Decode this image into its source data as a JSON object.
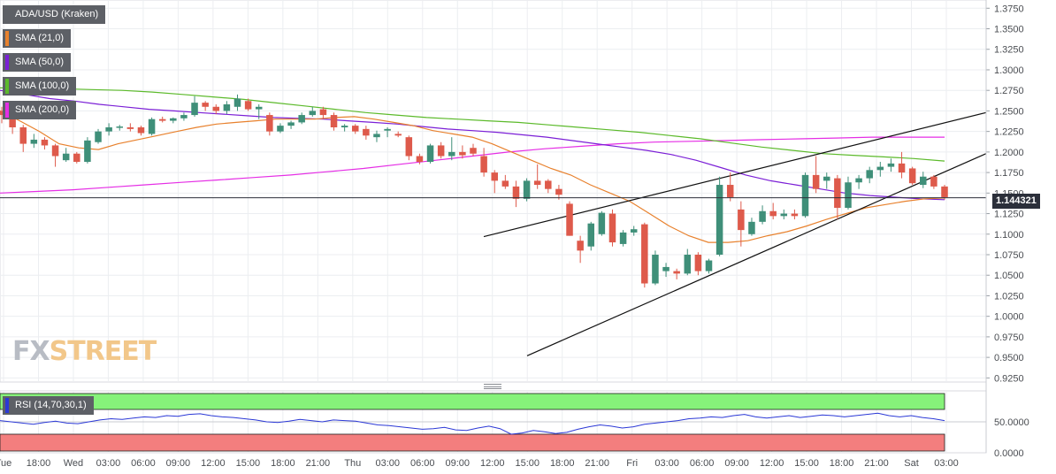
{
  "legends": [
    {
      "label": "ADA/USD (Kraken)",
      "color": "#5d6066"
    },
    {
      "label": "SMA (21,0)",
      "color": "#e8812d"
    },
    {
      "label": "SMA (50,0)",
      "color": "#7b1fd6"
    },
    {
      "label": "SMA (100,0)",
      "color": "#5cba2b"
    },
    {
      "label": "SMA (200,0)",
      "color": "#e52ee5"
    }
  ],
  "rsi_label": "RSI (14,70,30,1)",
  "current_price": "1.144321",
  "watermark": {
    "fx": "FX",
    "street": "STREET"
  },
  "colors": {
    "up": "#3f8f79",
    "down": "#de5a4b",
    "sma21": "#e8812d",
    "sma50": "#7b1fd6",
    "sma100": "#5cba2b",
    "sma200": "#e52ee5",
    "rsi": "#2b38d6",
    "rsi_over": "#86f27a",
    "rsi_under": "#f37e7e"
  },
  "chart_data": [
    {
      "type": "candlestick",
      "title": "ADA/USD (Kraken)",
      "ylim": [
        0.92,
        1.385
      ],
      "y_ticks": [
        "1.3750",
        "1.3500",
        "1.3250",
        "1.3000",
        "1.2750",
        "1.2500",
        "1.2250",
        "1.2000",
        "1.1750",
        "1.1500",
        "1.1250",
        "1.1000",
        "1.0750",
        "1.0500",
        "1.0250",
        "1.0000",
        "0.9750",
        "0.9500",
        "0.9250"
      ],
      "x_ticks": [
        "Tue",
        "18:00",
        "Wed",
        "03:00",
        "06:00",
        "09:00",
        "12:00",
        "15:00",
        "18:00",
        "21:00",
        "Thu",
        "03:00",
        "06:00",
        "09:00",
        "12:00",
        "15:00",
        "18:00",
        "21:00",
        "Fri",
        "03:00",
        "06:00",
        "09:00",
        "12:00",
        "15:00",
        "18:00",
        "21:00",
        "Sat",
        "03:00"
      ],
      "candles": [
        {
          "o": 1.25,
          "h": 1.255,
          "l": 1.235,
          "c": 1.245
        },
        {
          "o": 1.245,
          "h": 1.252,
          "l": 1.222,
          "c": 1.23
        },
        {
          "o": 1.23,
          "h": 1.233,
          "l": 1.2,
          "c": 1.21
        },
        {
          "o": 1.21,
          "h": 1.222,
          "l": 1.205,
          "c": 1.215
        },
        {
          "o": 1.215,
          "h": 1.218,
          "l": 1.203,
          "c": 1.208
        },
        {
          "o": 1.208,
          "h": 1.21,
          "l": 1.182,
          "c": 1.195
        },
        {
          "o": 1.19,
          "h": 1.205,
          "l": 1.188,
          "c": 1.198
        },
        {
          "o": 1.198,
          "h": 1.2,
          "l": 1.186,
          "c": 1.188
        },
        {
          "o": 1.188,
          "h": 1.218,
          "l": 1.186,
          "c": 1.214
        },
        {
          "o": 1.212,
          "h": 1.228,
          "l": 1.21,
          "c": 1.225
        },
        {
          "o": 1.225,
          "h": 1.235,
          "l": 1.22,
          "c": 1.23
        },
        {
          "o": 1.23,
          "h": 1.233,
          "l": 1.226,
          "c": 1.231
        },
        {
          "o": 1.23,
          "h": 1.235,
          "l": 1.225,
          "c": 1.228
        },
        {
          "o": 1.23,
          "h": 1.232,
          "l": 1.22,
          "c": 1.223
        },
        {
          "o": 1.222,
          "h": 1.242,
          "l": 1.22,
          "c": 1.24
        },
        {
          "o": 1.24,
          "h": 1.243,
          "l": 1.236,
          "c": 1.238
        },
        {
          "o": 1.238,
          "h": 1.242,
          "l": 1.235,
          "c": 1.241
        },
        {
          "o": 1.241,
          "h": 1.248,
          "l": 1.238,
          "c": 1.245
        },
        {
          "o": 1.245,
          "h": 1.268,
          "l": 1.243,
          "c": 1.26
        },
        {
          "o": 1.26,
          "h": 1.262,
          "l": 1.25,
          "c": 1.255
        },
        {
          "o": 1.255,
          "h": 1.258,
          "l": 1.246,
          "c": 1.25
        },
        {
          "o": 1.25,
          "h": 1.262,
          "l": 1.246,
          "c": 1.258
        },
        {
          "o": 1.255,
          "h": 1.27,
          "l": 1.25,
          "c": 1.265
        },
        {
          "o": 1.262,
          "h": 1.265,
          "l": 1.25,
          "c": 1.252
        },
        {
          "o": 1.252,
          "h": 1.258,
          "l": 1.24,
          "c": 1.255
        },
        {
          "o": 1.245,
          "h": 1.248,
          "l": 1.22,
          "c": 1.225
        },
        {
          "o": 1.225,
          "h": 1.235,
          "l": 1.223,
          "c": 1.232
        },
        {
          "o": 1.232,
          "h": 1.238,
          "l": 1.228,
          "c": 1.236
        },
        {
          "o": 1.236,
          "h": 1.248,
          "l": 1.234,
          "c": 1.245
        },
        {
          "o": 1.245,
          "h": 1.255,
          "l": 1.243,
          "c": 1.25
        },
        {
          "o": 1.252,
          "h": 1.255,
          "l": 1.24,
          "c": 1.245
        },
        {
          "o": 1.245,
          "h": 1.248,
          "l": 1.226,
          "c": 1.23
        },
        {
          "o": 1.23,
          "h": 1.234,
          "l": 1.225,
          "c": 1.232
        },
        {
          "o": 1.232,
          "h": 1.234,
          "l": 1.222,
          "c": 1.225
        },
        {
          "o": 1.228,
          "h": 1.232,
          "l": 1.215,
          "c": 1.22
        },
        {
          "o": 1.218,
          "h": 1.226,
          "l": 1.212,
          "c": 1.222
        },
        {
          "o": 1.226,
          "h": 1.23,
          "l": 1.218,
          "c": 1.228
        },
        {
          "o": 1.222,
          "h": 1.225,
          "l": 1.218,
          "c": 1.22
        },
        {
          "o": 1.218,
          "h": 1.22,
          "l": 1.19,
          "c": 1.195
        },
        {
          "o": 1.195,
          "h": 1.198,
          "l": 1.185,
          "c": 1.188
        },
        {
          "o": 1.188,
          "h": 1.21,
          "l": 1.186,
          "c": 1.208
        },
        {
          "o": 1.208,
          "h": 1.212,
          "l": 1.192,
          "c": 1.195
        },
        {
          "o": 1.195,
          "h": 1.218,
          "l": 1.19,
          "c": 1.2
        },
        {
          "o": 1.2,
          "h": 1.208,
          "l": 1.192,
          "c": 1.196
        },
        {
          "o": 1.205,
          "h": 1.21,
          "l": 1.195,
          "c": 1.198
        },
        {
          "o": 1.195,
          "h": 1.205,
          "l": 1.17,
          "c": 1.175
        },
        {
          "o": 1.175,
          "h": 1.178,
          "l": 1.15,
          "c": 1.165
        },
        {
          "o": 1.165,
          "h": 1.172,
          "l": 1.155,
          "c": 1.158
        },
        {
          "o": 1.158,
          "h": 1.165,
          "l": 1.133,
          "c": 1.143
        },
        {
          "o": 1.143,
          "h": 1.168,
          "l": 1.14,
          "c": 1.165
        },
        {
          "o": 1.165,
          "h": 1.185,
          "l": 1.155,
          "c": 1.16
        },
        {
          "o": 1.165,
          "h": 1.167,
          "l": 1.15,
          "c": 1.155
        },
        {
          "o": 1.155,
          "h": 1.16,
          "l": 1.142,
          "c": 1.148
        },
        {
          "o": 1.137,
          "h": 1.14,
          "l": 1.098,
          "c": 1.098
        },
        {
          "o": 1.092,
          "h": 1.098,
          "l": 1.065,
          "c": 1.08
        },
        {
          "o": 1.085,
          "h": 1.115,
          "l": 1.08,
          "c": 1.113
        },
        {
          "o": 1.1,
          "h": 1.128,
          "l": 1.098,
          "c": 1.126
        },
        {
          "o": 1.125,
          "h": 1.13,
          "l": 1.085,
          "c": 1.09
        },
        {
          "o": 1.088,
          "h": 1.105,
          "l": 1.085,
          "c": 1.102
        },
        {
          "o": 1.102,
          "h": 1.11,
          "l": 1.098,
          "c": 1.106
        },
        {
          "o": 1.112,
          "h": 1.114,
          "l": 1.035,
          "c": 1.04
        },
        {
          "o": 1.04,
          "h": 1.08,
          "l": 1.038,
          "c": 1.075
        },
        {
          "o": 1.055,
          "h": 1.065,
          "l": 1.048,
          "c": 1.06
        },
        {
          "o": 1.055,
          "h": 1.058,
          "l": 1.045,
          "c": 1.052
        },
        {
          "o": 1.052,
          "h": 1.082,
          "l": 1.05,
          "c": 1.075
        },
        {
          "o": 1.075,
          "h": 1.078,
          "l": 1.05,
          "c": 1.055
        },
        {
          "o": 1.055,
          "h": 1.07,
          "l": 1.052,
          "c": 1.068
        },
        {
          "o": 1.075,
          "h": 1.17,
          "l": 1.073,
          "c": 1.16
        },
        {
          "o": 1.16,
          "h": 1.175,
          "l": 1.14,
          "c": 1.145
        },
        {
          "o": 1.13,
          "h": 1.14,
          "l": 1.085,
          "c": 1.105
        },
        {
          "o": 1.1,
          "h": 1.12,
          "l": 1.098,
          "c": 1.115
        },
        {
          "o": 1.115,
          "h": 1.135,
          "l": 1.112,
          "c": 1.128
        },
        {
          "o": 1.128,
          "h": 1.138,
          "l": 1.118,
          "c": 1.122
        },
        {
          "o": 1.122,
          "h": 1.13,
          "l": 1.118,
          "c": 1.125
        },
        {
          "o": 1.125,
          "h": 1.13,
          "l": 1.118,
          "c": 1.122
        },
        {
          "o": 1.122,
          "h": 1.175,
          "l": 1.12,
          "c": 1.172
        },
        {
          "o": 1.172,
          "h": 1.195,
          "l": 1.15,
          "c": 1.155
        },
        {
          "o": 1.165,
          "h": 1.175,
          "l": 1.155,
          "c": 1.17
        },
        {
          "o": 1.168,
          "h": 1.172,
          "l": 1.118,
          "c": 1.132
        },
        {
          "o": 1.132,
          "h": 1.17,
          "l": 1.13,
          "c": 1.163
        },
        {
          "o": 1.163,
          "h": 1.172,
          "l": 1.155,
          "c": 1.168
        },
        {
          "o": 1.168,
          "h": 1.182,
          "l": 1.162,
          "c": 1.178
        },
        {
          "o": 1.178,
          "h": 1.188,
          "l": 1.17,
          "c": 1.182
        },
        {
          "o": 1.182,
          "h": 1.192,
          "l": 1.176,
          "c": 1.186
        },
        {
          "o": 1.186,
          "h": 1.2,
          "l": 1.168,
          "c": 1.175
        },
        {
          "o": 1.18,
          "h": 1.182,
          "l": 1.16,
          "c": 1.162
        },
        {
          "o": 1.16,
          "h": 1.176,
          "l": 1.156,
          "c": 1.17
        },
        {
          "o": 1.17,
          "h": 1.172,
          "l": 1.155,
          "c": 1.158
        },
        {
          "o": 1.158,
          "h": 1.16,
          "l": 1.142,
          "c": 1.145
        }
      ],
      "sma21": [
        1.25,
        1.238,
        1.225,
        1.21,
        1.205,
        1.203,
        1.21,
        1.215,
        1.22,
        1.225,
        1.23,
        1.234,
        1.236,
        1.238,
        1.24,
        1.24,
        1.24,
        1.242,
        1.243,
        1.24,
        1.236,
        1.232,
        1.226,
        1.222,
        1.218,
        1.21,
        1.2,
        1.19,
        1.18,
        1.172,
        1.16,
        1.15,
        1.14,
        1.125,
        1.11,
        1.098,
        1.09,
        1.09,
        1.092,
        1.098,
        1.103,
        1.11,
        1.118,
        1.125,
        1.132,
        1.136,
        1.14,
        1.143,
        1.144
      ],
      "sma50": [
        1.275,
        1.27,
        1.265,
        1.262,
        1.258,
        1.255,
        1.252,
        1.25,
        1.248,
        1.246,
        1.244,
        1.242,
        1.241,
        1.24,
        1.238,
        1.236,
        1.234,
        1.231,
        1.228,
        1.226,
        1.224,
        1.221,
        1.218,
        1.214,
        1.21,
        1.206,
        1.202,
        1.197,
        1.19,
        1.181,
        1.172,
        1.165,
        1.16,
        1.155,
        1.15,
        1.147,
        1.145,
        1.143,
        1.142
      ],
      "sma100": [
        1.278,
        1.278,
        1.277,
        1.276,
        1.275,
        1.273,
        1.27,
        1.267,
        1.264,
        1.26,
        1.256,
        1.252,
        1.248,
        1.245,
        1.242,
        1.24,
        1.238,
        1.236,
        1.233,
        1.23,
        1.227,
        1.224,
        1.22,
        1.216,
        1.211,
        1.206,
        1.202,
        1.198,
        1.196,
        1.194,
        1.192,
        1.189
      ],
      "sma200": [
        1.15,
        1.152,
        1.154,
        1.157,
        1.16,
        1.163,
        1.166,
        1.169,
        1.172,
        1.176,
        1.18,
        1.185,
        1.19,
        1.195,
        1.2,
        1.204,
        1.207,
        1.21,
        1.212,
        1.213,
        1.214,
        1.215,
        1.216,
        1.217,
        1.218,
        1.218,
        1.218
      ],
      "trendlines": [
        {
          "from": [
            1.097
          ],
          "to": [
            1.248
          ]
        },
        {
          "from": [
            0.952
          ],
          "to": [
            1.198
          ]
        }
      ]
    },
    {
      "type": "line",
      "title": "RSI (14,70,30,1)",
      "ylim": [
        0,
        100
      ],
      "y_ticks": [
        "50.0000",
        "0.0000"
      ],
      "rsi": [
        52,
        50,
        48,
        46,
        49,
        51,
        48,
        47,
        50,
        53,
        55,
        54,
        56,
        58,
        57,
        60,
        59,
        62,
        63,
        60,
        58,
        57,
        55,
        53,
        50,
        49,
        51,
        54,
        52,
        50,
        53,
        52,
        51,
        48,
        45,
        44,
        42,
        40,
        38,
        39,
        41,
        37,
        36,
        40,
        43,
        39,
        30,
        32,
        36,
        34,
        31,
        33,
        38,
        42,
        45,
        43,
        40,
        42,
        46,
        48,
        50,
        52,
        55,
        56,
        58,
        57,
        60,
        62,
        58,
        56,
        58,
        60,
        57,
        59,
        61,
        60,
        58,
        60,
        62,
        64,
        60,
        58,
        60,
        57,
        55,
        52
      ],
      "overbought": 70,
      "oversold": 30
    }
  ]
}
